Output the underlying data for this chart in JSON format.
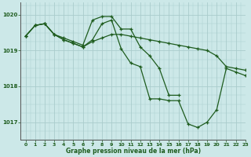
{
  "title": "Graphe pression niveau de la mer (hPa)",
  "bg_color": "#cce8e8",
  "grid_color": "#aacccc",
  "line_color": "#1e5c1e",
  "xlim": [
    -0.5,
    23
  ],
  "ylim": [
    1016.5,
    1020.35
  ],
  "yticks": [
    1017,
    1018,
    1019,
    1020
  ],
  "xticks": [
    0,
    1,
    2,
    3,
    4,
    5,
    6,
    7,
    8,
    9,
    10,
    11,
    12,
    13,
    14,
    15,
    16,
    17,
    18,
    19,
    20,
    21,
    22,
    23
  ],
  "series": [
    {
      "name": "s1_hump",
      "x": [
        0,
        1,
        2,
        3,
        4,
        5,
        6,
        7,
        8,
        9,
        10,
        11,
        12,
        13,
        14,
        15,
        16,
        17,
        18,
        19,
        20,
        21,
        22,
        23
      ],
      "y": [
        1019.4,
        1019.7,
        1019.75,
        1019.45,
        1019.35,
        1019.25,
        1019.15,
        1019.85,
        1019.95,
        1019.95,
        1019.6,
        1019.6,
        1019.1,
        1018.85,
        1018.5,
        1017.75,
        1017.75,
        null,
        null,
        null,
        null,
        null,
        null,
        null
      ]
    },
    {
      "name": "s2_steep",
      "x": [
        0,
        1,
        2,
        3,
        4,
        5,
        6,
        7,
        8,
        9,
        10,
        11,
        12,
        13,
        14,
        15,
        16,
        17,
        18,
        19,
        20,
        21,
        22,
        23
      ],
      "y": [
        1019.4,
        1019.7,
        1019.75,
        1019.45,
        1019.3,
        1019.2,
        1019.1,
        1019.3,
        1019.75,
        1019.85,
        1019.05,
        1018.65,
        1018.55,
        1017.65,
        1017.65,
        1017.6,
        1017.6,
        1016.95,
        1016.85,
        1017.0,
        1017.35,
        1018.5,
        1018.4,
        1018.3
      ]
    },
    {
      "name": "s3_flat",
      "x": [
        0,
        1,
        2,
        3,
        4,
        5,
        6,
        7,
        8,
        9,
        10,
        11,
        12,
        13,
        14,
        15,
        16,
        17,
        18,
        19,
        20,
        21,
        22,
        23
      ],
      "y": [
        1019.4,
        1019.7,
        1019.75,
        1019.45,
        1019.3,
        1019.2,
        1019.1,
        1019.25,
        1019.35,
        1019.45,
        1019.45,
        1019.4,
        1019.35,
        1019.3,
        1019.25,
        1019.2,
        1019.15,
        1019.1,
        1019.05,
        1019.0,
        1018.85,
        1018.55,
        1018.5,
        1018.45
      ]
    }
  ]
}
